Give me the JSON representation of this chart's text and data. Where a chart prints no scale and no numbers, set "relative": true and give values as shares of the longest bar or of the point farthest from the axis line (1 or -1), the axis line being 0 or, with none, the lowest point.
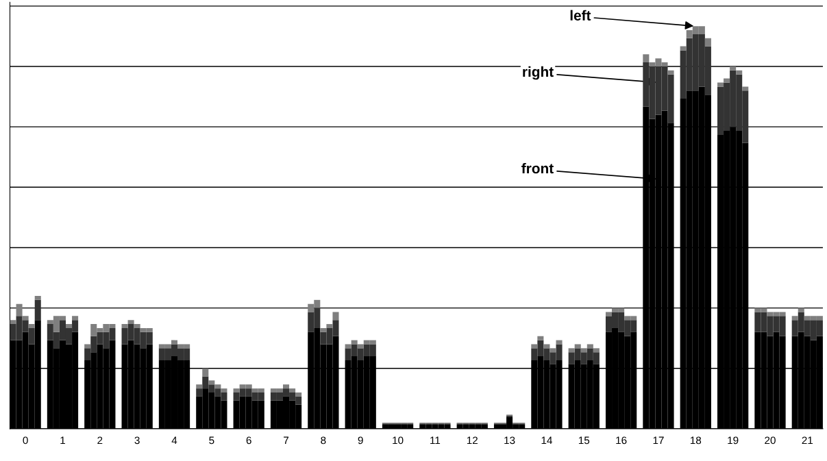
{
  "chart_data": {
    "type": "bar",
    "stacked": true,
    "relative": true,
    "grid": "y",
    "categories": [
      null,
      null,
      "0",
      null,
      null,
      null,
      null,
      null,
      "1",
      null,
      null,
      null,
      null,
      null,
      "2",
      null,
      null,
      null,
      null,
      null,
      "3",
      null,
      null,
      null,
      null,
      null,
      "4",
      null,
      null,
      null,
      null,
      null,
      "5",
      null,
      null,
      null,
      null,
      null,
      "6",
      null,
      null,
      null,
      null,
      null,
      "7",
      null,
      null,
      null,
      null,
      null,
      "8",
      null,
      null,
      null,
      null,
      null,
      "9",
      null,
      null,
      null,
      null,
      null,
      "10",
      null,
      null,
      null,
      null,
      null,
      "11",
      null,
      null,
      null,
      null,
      null,
      "12",
      null,
      null,
      null,
      null,
      null,
      "13",
      null,
      null,
      null,
      null,
      null,
      "14",
      null,
      null,
      null,
      null,
      null,
      "15",
      null,
      null,
      null,
      null,
      null,
      "16",
      null,
      null,
      null,
      null,
      null,
      "17",
      null,
      null,
      null,
      null,
      null,
      "18",
      null,
      null,
      null,
      null,
      null,
      "19",
      null,
      null,
      null,
      null,
      null,
      "20",
      null,
      null,
      null,
      null,
      null,
      "21",
      null,
      null
    ],
    "series": [
      {
        "color": "#000000",
        "values": [
          0.22,
          0.22,
          0.24,
          0.21,
          0.27,
          null,
          0.22,
          0.2,
          0.22,
          0.21,
          0.24,
          null,
          0.17,
          0.19,
          0.21,
          0.2,
          0.22,
          null,
          0.21,
          0.22,
          0.21,
          0.2,
          0.21,
          null,
          0.17,
          0.17,
          0.18,
          0.17,
          0.17,
          null,
          0.08,
          0.1,
          0.09,
          0.08,
          0.07,
          null,
          0.07,
          0.08,
          0.08,
          0.07,
          0.07,
          null,
          0.07,
          0.07,
          0.08,
          0.07,
          0.06,
          null,
          0.24,
          0.25,
          0.21,
          0.21,
          0.23,
          null,
          0.17,
          0.18,
          0.17,
          0.18,
          0.18,
          null,
          0.01,
          0.01,
          0.01,
          0.01,
          0.01,
          null,
          0.01,
          0.01,
          0.01,
          0.01,
          0.01,
          null,
          0.01,
          0.01,
          0.01,
          0.01,
          0.01,
          null,
          0.01,
          0.01,
          0.03,
          0.01,
          0.01,
          null,
          0.17,
          0.18,
          0.17,
          0.16,
          0.17,
          null,
          0.16,
          0.17,
          0.16,
          0.17,
          0.16,
          null,
          0.24,
          0.25,
          0.24,
          0.23,
          0.24,
          null,
          0.8,
          0.77,
          0.78,
          0.79,
          0.76,
          null,
          0.82,
          0.84,
          0.84,
          0.85,
          0.83,
          null,
          0.73,
          0.74,
          0.75,
          0.74,
          0.71,
          null,
          0.24,
          0.24,
          0.23,
          0.24,
          0.23,
          null,
          0.23,
          0.24,
          0.23,
          0.22,
          0.23
        ]
      },
      {
        "color": "#333333",
        "values": [
          0.04,
          0.06,
          0.03,
          0.04,
          0.05,
          null,
          0.04,
          0.04,
          0.05,
          0.04,
          0.03,
          null,
          0.03,
          0.04,
          0.03,
          0.04,
          0.03,
          null,
          0.04,
          0.04,
          0.04,
          0.04,
          0.03,
          null,
          0.03,
          0.03,
          0.03,
          0.03,
          0.03,
          null,
          0.02,
          0.03,
          0.02,
          0.02,
          0.02,
          null,
          0.02,
          0.02,
          0.02,
          0.02,
          0.02,
          null,
          0.02,
          0.02,
          0.02,
          0.02,
          0.02,
          null,
          0.05,
          0.05,
          0.03,
          0.04,
          0.04,
          null,
          0.03,
          0.03,
          0.03,
          0.03,
          0.03,
          null,
          0.003,
          0.003,
          0.003,
          0.003,
          0.003,
          null,
          0.003,
          0.003,
          0.003,
          0.003,
          0.003,
          null,
          0.003,
          0.003,
          0.003,
          0.003,
          0.003,
          null,
          0.003,
          0.003,
          0.003,
          0.003,
          0.003,
          null,
          0.03,
          0.04,
          0.03,
          0.03,
          0.04,
          null,
          0.03,
          0.03,
          0.03,
          0.03,
          0.03,
          null,
          0.04,
          0.04,
          0.05,
          0.04,
          0.03,
          null,
          0.11,
          0.13,
          0.12,
          0.11,
          0.12,
          null,
          0.12,
          0.13,
          0.14,
          0.13,
          0.12,
          null,
          0.12,
          0.12,
          0.14,
          0.14,
          0.13,
          null,
          0.05,
          0.05,
          0.05,
          0.04,
          0.05,
          null,
          0.04,
          0.05,
          0.04,
          0.05,
          0.04
        ]
      },
      {
        "color": "#7f7f7f",
        "values": [
          0.01,
          0.03,
          0.01,
          0.01,
          0.01,
          null,
          0.01,
          0.04,
          0.01,
          0.01,
          0.01,
          null,
          0.01,
          0.03,
          0.01,
          0.02,
          0.01,
          null,
          0.01,
          0.01,
          0.01,
          0.01,
          0.01,
          null,
          0.01,
          0.01,
          0.01,
          0.01,
          0.01,
          null,
          0.01,
          0.02,
          0.01,
          0.01,
          0.01,
          null,
          0.01,
          0.01,
          0.01,
          0.01,
          0.01,
          null,
          0.01,
          0.01,
          0.01,
          0.01,
          0.01,
          null,
          0.02,
          0.02,
          0.01,
          0.01,
          0.02,
          null,
          0.01,
          0.01,
          0.01,
          0.01,
          0.01,
          null,
          0.002,
          0.002,
          0.002,
          0.002,
          0.002,
          null,
          0.002,
          0.002,
          0.002,
          0.002,
          0.002,
          null,
          0.002,
          0.002,
          0.002,
          0.002,
          0.002,
          null,
          0.002,
          0.002,
          0.002,
          0.002,
          0.002,
          null,
          0.01,
          0.01,
          0.01,
          0.01,
          0.01,
          null,
          0.01,
          0.01,
          0.01,
          0.01,
          0.01,
          null,
          0.01,
          0.01,
          0.01,
          0.01,
          0.01,
          null,
          0.02,
          0.01,
          0.02,
          0.01,
          0.01,
          null,
          0.01,
          0.02,
          0.02,
          0.02,
          0.02,
          null,
          0.01,
          0.01,
          0.01,
          0.01,
          0.01,
          null,
          0.01,
          0.01,
          0.01,
          0.01,
          0.01,
          null,
          0.01,
          0.01,
          0.01,
          0.01,
          0.01
        ]
      }
    ],
    "annotations": [
      {
        "text": "left",
        "x": "18",
        "y": 1.0
      },
      {
        "text": "right",
        "x": "17",
        "y": 0.86
      },
      {
        "text": "front",
        "x": "17",
        "y": 0.62
      }
    ]
  }
}
